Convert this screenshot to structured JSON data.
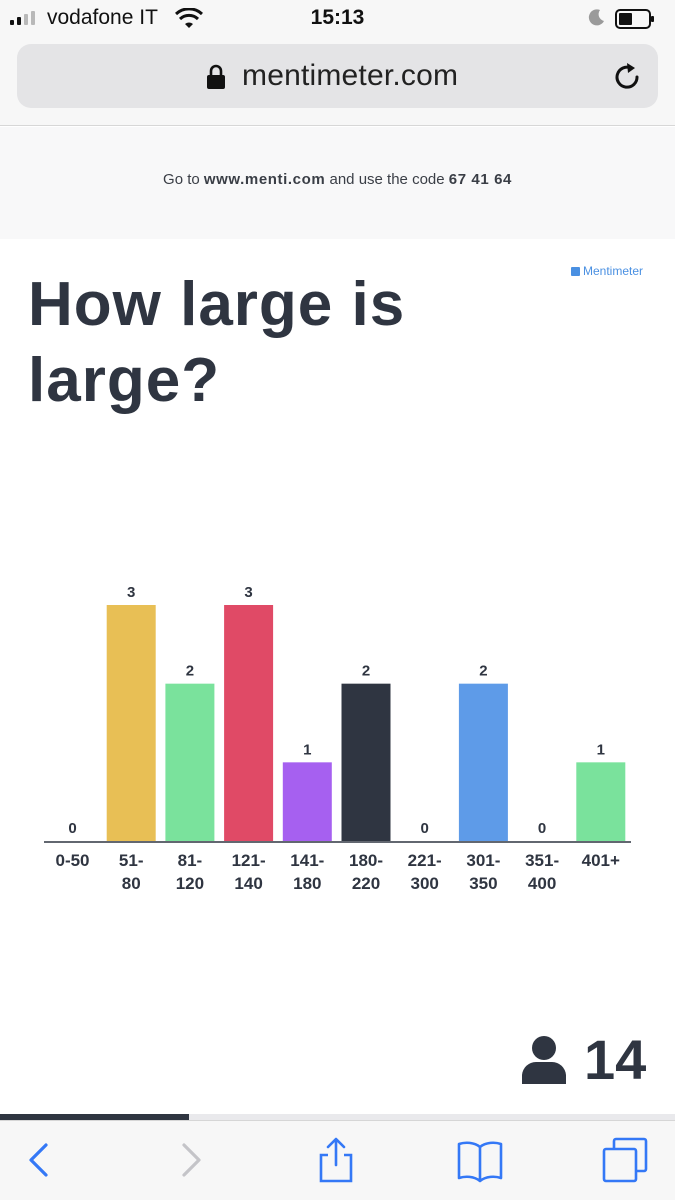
{
  "status_bar": {
    "carrier": "vodafone IT",
    "time": "15:13"
  },
  "browser": {
    "url": "mentimeter.com"
  },
  "instructions": {
    "prefix": "Go to",
    "site": "www.menti.com",
    "middle": "and use the code",
    "code": "67 41 64"
  },
  "slide": {
    "brand": "Mentimeter",
    "title": "How large is large?",
    "participant_count": "14",
    "progress": 0.28
  },
  "colors": {
    "accent": "#4a90e2",
    "text_dark": "#2f3541"
  },
  "chart_data": {
    "type": "bar",
    "categories": [
      [
        "0-50"
      ],
      [
        "51-",
        "80"
      ],
      [
        "81-",
        "120"
      ],
      [
        "121-",
        "140"
      ],
      [
        "141-",
        "180"
      ],
      [
        "180-",
        "220"
      ],
      [
        "221-",
        "300"
      ],
      [
        "301-",
        "350"
      ],
      [
        "351-",
        "400"
      ],
      [
        "401+"
      ]
    ],
    "values": [
      0,
      3,
      2,
      3,
      1,
      2,
      0,
      2,
      0,
      1
    ],
    "colors": [
      "#e8bf55",
      "#e8bf55",
      "#7ae29c",
      "#e04a66",
      "#a660f0",
      "#2f3541",
      "#2f3541",
      "#5e9be8",
      "#5e9be8",
      "#7ae29c"
    ],
    "ylim": [
      0,
      3
    ]
  }
}
